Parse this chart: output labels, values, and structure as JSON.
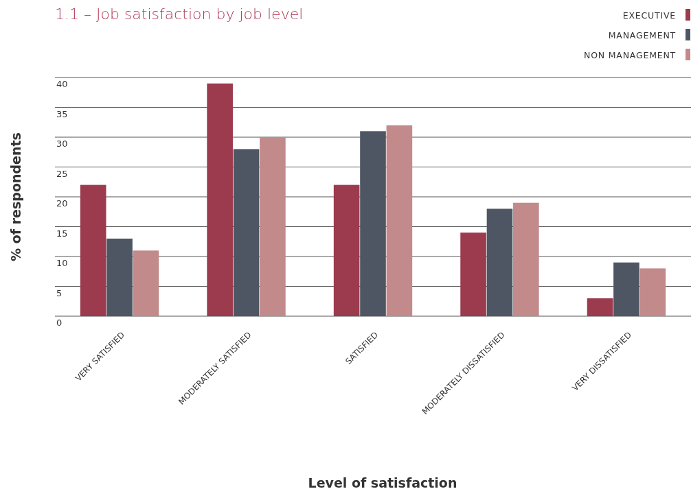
{
  "chart_data": {
    "type": "bar",
    "title": "1.1 – Job satisfaction by job level",
    "xlabel": "Level of satisfaction",
    "ylabel": "% of respondents",
    "categories": [
      "VERY SATISFIED",
      "MODERATELY SATISFIED",
      "SATISFIED",
      "MODERATELY DISSATISFIED",
      "VERY DISSATISFIED"
    ],
    "series": [
      {
        "name": "EXECUTIVE",
        "color": "#9c3a4e",
        "values": [
          22,
          39,
          22,
          14,
          3
        ]
      },
      {
        "name": "MANAGEMENT",
        "color": "#4f5663",
        "values": [
          13,
          28,
          31,
          18,
          9
        ]
      },
      {
        "name": "NON MANAGEMENT",
        "color": "#c28a8b",
        "values": [
          11,
          30,
          32,
          19,
          8
        ]
      }
    ],
    "ylim": [
      0,
      40
    ],
    "yticks": [
      0,
      5,
      10,
      15,
      20,
      25,
      30,
      35,
      40
    ],
    "grid": "y",
    "legend": "top right"
  }
}
